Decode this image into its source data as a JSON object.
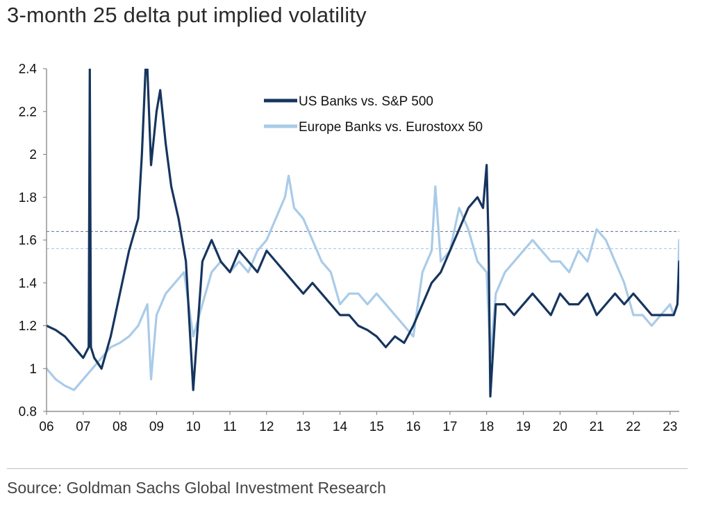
{
  "chart_data": {
    "type": "line",
    "title": "3-month 25 delta put implied volatility",
    "xlabel": "",
    "ylabel": "",
    "x_range": [
      2006.0,
      2023.25
    ],
    "ylim": [
      0.8,
      2.4
    ],
    "yticks": [
      "0.8",
      "1",
      "1.2",
      "1.4",
      "1.6",
      "1.8",
      "2",
      "2.2",
      "2.4"
    ],
    "yticks_values": [
      0.8,
      1.0,
      1.2,
      1.4,
      1.6,
      1.8,
      2.0,
      2.2,
      2.4
    ],
    "xticks": [
      "06",
      "07",
      "08",
      "09",
      "10",
      "11",
      "12",
      "13",
      "14",
      "15",
      "16",
      "17",
      "18",
      "19",
      "20",
      "21",
      "22",
      "23"
    ],
    "xticks_values": [
      2006,
      2007,
      2008,
      2009,
      2010,
      2011,
      2012,
      2013,
      2014,
      2015,
      2016,
      2017,
      2018,
      2019,
      2020,
      2021,
      2022,
      2023
    ],
    "grid": false,
    "legend_position": "top-center",
    "series": [
      {
        "name": "US Banks vs. S&P 500",
        "color": "#16355e",
        "reference_line": 1.64,
        "x": [
          2006.0,
          2006.25,
          2006.5,
          2006.75,
          2007.0,
          2007.15,
          2007.18,
          2007.21,
          2007.3,
          2007.5,
          2007.75,
          2008.0,
          2008.25,
          2008.5,
          2008.6,
          2008.7,
          2008.75,
          2008.85,
          2009.0,
          2009.1,
          2009.25,
          2009.4,
          2009.6,
          2009.8,
          2009.95,
          2010.0,
          2010.25,
          2010.5,
          2010.75,
          2011.0,
          2011.25,
          2011.5,
          2011.75,
          2012.0,
          2012.25,
          2012.5,
          2012.75,
          2013.0,
          2013.25,
          2013.5,
          2013.75,
          2014.0,
          2014.25,
          2014.5,
          2014.75,
          2015.0,
          2015.25,
          2015.5,
          2015.75,
          2016.0,
          2016.25,
          2016.5,
          2016.75,
          2017.0,
          2017.25,
          2017.5,
          2017.75,
          2017.9,
          2018.0,
          2018.05,
          2018.1,
          2018.25,
          2018.5,
          2018.75,
          2019.0,
          2019.25,
          2019.5,
          2019.75,
          2020.0,
          2020.25,
          2020.5,
          2020.75,
          2021.0,
          2021.25,
          2021.5,
          2021.75,
          2022.0,
          2022.25,
          2022.5,
          2022.75,
          2023.0,
          2023.1,
          2023.2,
          2023.25
        ],
        "values": [
          1.2,
          1.18,
          1.15,
          1.1,
          1.05,
          1.1,
          2.4,
          1.1,
          1.05,
          1.0,
          1.15,
          1.35,
          1.55,
          1.7,
          2.0,
          2.4,
          2.4,
          1.95,
          2.2,
          2.3,
          2.05,
          1.85,
          1.7,
          1.5,
          1.05,
          0.9,
          1.5,
          1.6,
          1.5,
          1.45,
          1.55,
          1.5,
          1.45,
          1.55,
          1.5,
          1.45,
          1.4,
          1.35,
          1.4,
          1.35,
          1.3,
          1.25,
          1.25,
          1.2,
          1.18,
          1.15,
          1.1,
          1.15,
          1.12,
          1.2,
          1.3,
          1.4,
          1.45,
          1.55,
          1.65,
          1.75,
          1.8,
          1.75,
          1.95,
          1.6,
          0.87,
          1.3,
          1.3,
          1.25,
          1.3,
          1.35,
          1.3,
          1.25,
          1.35,
          1.3,
          1.3,
          1.35,
          1.25,
          1.3,
          1.35,
          1.3,
          1.35,
          1.3,
          1.25,
          1.25,
          1.25,
          1.25,
          1.3,
          1.5
        ]
      },
      {
        "name": "Europe Banks vs. Eurostoxx 50",
        "color": "#a9cbe8",
        "reference_line": 1.56,
        "x": [
          2006.0,
          2006.25,
          2006.5,
          2006.75,
          2007.0,
          2007.25,
          2007.5,
          2007.75,
          2008.0,
          2008.25,
          2008.5,
          2008.75,
          2008.85,
          2009.0,
          2009.25,
          2009.5,
          2009.75,
          2010.0,
          2010.25,
          2010.5,
          2010.75,
          2011.0,
          2011.25,
          2011.5,
          2011.75,
          2012.0,
          2012.25,
          2012.5,
          2012.6,
          2012.75,
          2013.0,
          2013.25,
          2013.5,
          2013.75,
          2014.0,
          2014.25,
          2014.5,
          2014.75,
          2015.0,
          2015.25,
          2015.5,
          2015.75,
          2016.0,
          2016.25,
          2016.5,
          2016.6,
          2016.75,
          2017.0,
          2017.25,
          2017.5,
          2017.75,
          2018.0,
          2018.1,
          2018.25,
          2018.5,
          2018.75,
          2019.0,
          2019.25,
          2019.5,
          2019.75,
          2020.0,
          2020.25,
          2020.5,
          2020.75,
          2021.0,
          2021.25,
          2021.5,
          2021.75,
          2022.0,
          2022.25,
          2022.5,
          2022.75,
          2023.0,
          2023.1,
          2023.2,
          2023.25
        ],
        "values": [
          1.0,
          0.95,
          0.92,
          0.9,
          0.95,
          1.0,
          1.05,
          1.1,
          1.12,
          1.15,
          1.2,
          1.3,
          0.95,
          1.25,
          1.35,
          1.4,
          1.45,
          1.15,
          1.3,
          1.45,
          1.5,
          1.45,
          1.5,
          1.45,
          1.55,
          1.6,
          1.7,
          1.8,
          1.9,
          1.75,
          1.7,
          1.6,
          1.5,
          1.45,
          1.3,
          1.35,
          1.35,
          1.3,
          1.35,
          1.3,
          1.25,
          1.2,
          1.15,
          1.45,
          1.55,
          1.85,
          1.5,
          1.55,
          1.75,
          1.65,
          1.5,
          1.45,
          1.05,
          1.35,
          1.45,
          1.5,
          1.55,
          1.6,
          1.55,
          1.5,
          1.5,
          1.45,
          1.55,
          1.5,
          1.65,
          1.6,
          1.5,
          1.4,
          1.25,
          1.25,
          1.2,
          1.25,
          1.3,
          1.25,
          1.3,
          1.6
        ]
      }
    ]
  },
  "footer": {
    "source": "Source: Goldman Sachs Global Investment Research"
  }
}
